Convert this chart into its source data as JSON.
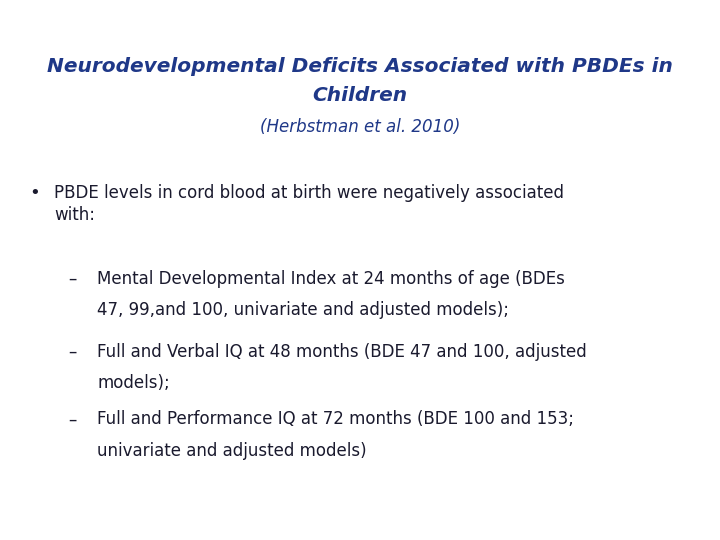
{
  "title_line1": "Neurodevelopmental Deficits Associated with PBDEs in",
  "title_line2": "Children",
  "subtitle": "(Herbstman et al. 2010)",
  "title_color": "#1F3888",
  "subtitle_color": "#1F3888",
  "body_color": "#1a1a2e",
  "background_color": "#ffffff",
  "bullet_text_line1": "PBDE levels in cord blood at birth were negatively associated",
  "bullet_text_line2": "with:",
  "sub_bullets": [
    [
      "Mental Developmental Index at 24 months of age (BDEs",
      "47, 99,and 100, univariate and adjusted models);"
    ],
    [
      "Full and Verbal IQ at 48 months (BDE 47 and 100, adjusted",
      "models);"
    ],
    [
      "Full and Performance IQ at 72 months (BDE 100 and 153;",
      "univariate and adjusted models)"
    ]
  ],
  "title_fontsize": 14.5,
  "subtitle_fontsize": 12,
  "bullet_fontsize": 12,
  "sub_bullet_fontsize": 12
}
